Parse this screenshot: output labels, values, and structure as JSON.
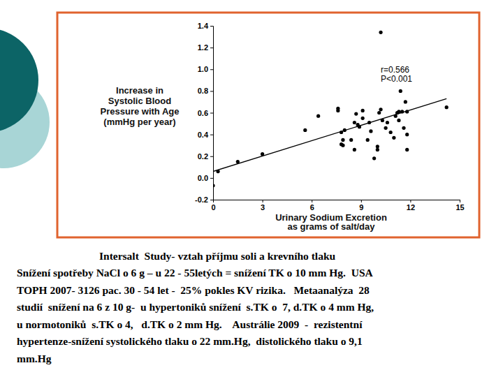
{
  "chart_data": {
    "type": "scatter",
    "y_label": [
      "Increase in",
      "Systolic Blood",
      "Pressure with Age",
      "(mmHg per year)"
    ],
    "x_label": [
      "Urinary Sodium Excretion",
      "as grams of salt/day"
    ],
    "annotations": [
      "r=0.566",
      "P<0.001"
    ],
    "xlim": [
      0,
      15
    ],
    "xticks": [
      0,
      3,
      6,
      9,
      12,
      15
    ],
    "ylim": [
      -0.2,
      1.4
    ],
    "yticks": [
      -0.2,
      {
        "value": 0,
        "label": "0.0"
      },
      0.2,
      0.4,
      0.6,
      0.8,
      {
        "value": 1,
        "label": "1.0"
      },
      1.2,
      1.4
    ],
    "grid": false,
    "series": [
      {
        "type": "scatter",
        "marker": "circle",
        "color": "#000000",
        "x": [
          0,
          0.3,
          1.5,
          3.0,
          5.6,
          6.4,
          7.6,
          7.6,
          7.8,
          8.0,
          7.9,
          7.8,
          7.9,
          8.6,
          8.4,
          8.7,
          8.6,
          8.8,
          8.9,
          9.1,
          9.1,
          9.4,
          9.5,
          9.6,
          9.8,
          10.0,
          10.0,
          10.2,
          10.2,
          10.1,
          10.3,
          10.6,
          10.5,
          10.8,
          11.0,
          11.2,
          11.1,
          11.3,
          11.3,
          11.4,
          11.5,
          11.6,
          11.8,
          11.8,
          11.7,
          11.8,
          14.2
        ],
        "values": [
          -0.07,
          0.06,
          0.15,
          0.22,
          0.44,
          0.57,
          0.64,
          0.62,
          0.42,
          0.44,
          0.35,
          0.31,
          0.3,
          0.26,
          0.35,
          0.59,
          0.51,
          0.49,
          0.47,
          0.62,
          0.55,
          0.35,
          0.51,
          0.43,
          0.18,
          0.29,
          0.26,
          1.34,
          0.63,
          0.6,
          0.53,
          0.51,
          0.46,
          0.42,
          0.37,
          0.6,
          0.57,
          0.61,
          0.53,
          0.8,
          0.61,
          0.46,
          0.4,
          0.26,
          0.7,
          0.61,
          0.65
        ]
      },
      {
        "type": "line",
        "line_style": "solid",
        "color": "#000000",
        "x": [
          0,
          14.2
        ],
        "values": [
          0.06,
          0.73
        ]
      }
    ]
  },
  "caption": {
    "title": "Intersalt  Study- vztah příjmu soli a krevního tlaku",
    "lines": [
      "Snížení spotřeby NaCl o 6 g – u 22 - 55letých = snížení TK o 10 mm Hg.  USA",
      "TOPH 2007- 3126 pac. 30 - 54 let -  25% pokles KV rizika.   Metaanalýza  28",
      "studií  snížení na 6 z 10 g-  u hypertoniků snížení  s.TK o  7, d.TK o 4 mm Hg,",
      "u normotoniků  s.TK o 4,   d.TK o 2 mm Hg.    Austrálie 2009  -  rezistentní",
      "hypertenze-snížení systolického tlaku o 22 mm.Hg,  distolického tlaku o 9,1",
      "mm.Hg"
    ]
  }
}
